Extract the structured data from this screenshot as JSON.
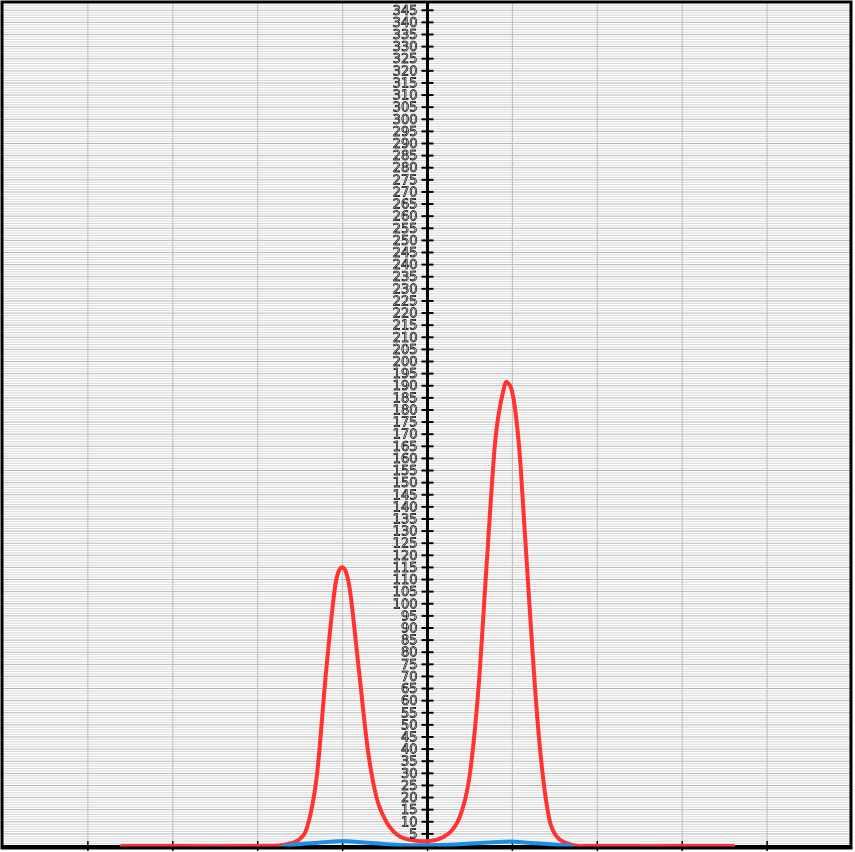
{
  "chart_data": {
    "type": "line",
    "title": "",
    "xlabel": "",
    "ylabel": "",
    "xlim": [
      -5,
      5
    ],
    "ylim": [
      0,
      348
    ],
    "x_ticks": [
      -4,
      -3,
      -2,
      -1,
      0,
      1,
      2,
      3,
      4
    ],
    "y_tick_step": 5,
    "y_labels": [
      "5",
      "10",
      "15",
      "20",
      "25",
      "30",
      "35",
      "40",
      "45",
      "50",
      "55",
      "60",
      "65",
      "70",
      "75",
      "80",
      "85",
      "90",
      "95",
      "100",
      "105",
      "110",
      "115",
      "120",
      "125",
      "130",
      "135",
      "140",
      "145",
      "150",
      "155",
      "160",
      "165",
      "170",
      "175",
      "180",
      "185",
      "190",
      "195",
      "200",
      "205",
      "210",
      "215",
      "220",
      "225",
      "230",
      "235",
      "240",
      "245",
      "250",
      "255",
      "260",
      "265",
      "270",
      "275",
      "280",
      "285",
      "290",
      "295",
      "300",
      "305",
      "310",
      "315",
      "320",
      "325",
      "330",
      "335",
      "340",
      "345"
    ],
    "grid": true,
    "legend": "none",
    "series": [
      {
        "color": "#ff3333",
        "x": [
          -3.6,
          -3.0,
          -2.0,
          -1.7,
          -1.5,
          -1.4,
          -1.3,
          -1.2,
          -1.1,
          -1.05,
          -1.0,
          -0.95,
          -0.9,
          -0.8,
          -0.7,
          -0.6,
          -0.5,
          -0.4,
          -0.3,
          -0.2,
          -0.1,
          0.0,
          0.1,
          0.2,
          0.3,
          0.4,
          0.5,
          0.6,
          0.7,
          0.8,
          0.9,
          0.95,
          1.0,
          1.05,
          1.1,
          1.2,
          1.3,
          1.4,
          1.5,
          1.7,
          2.0,
          3.0,
          3.6
        ],
        "y": [
          0,
          0,
          0,
          0.5,
          3,
          10,
          30,
          70,
          104,
          113,
          115,
          112,
          102,
          70,
          39,
          20,
          11,
          6,
          3.5,
          2.5,
          2,
          2,
          2.5,
          4,
          7,
          14,
          30,
          65,
          118,
          168,
          189,
          191,
          187,
          175,
          155,
          100,
          50,
          18,
          5,
          0.5,
          0,
          0,
          0
        ]
      },
      {
        "color": "#1a8fe3",
        "x": [
          -1.7,
          -1.5,
          -1.2,
          -1.0,
          -0.8,
          -0.5,
          -0.2,
          0.0,
          0.3,
          0.6,
          0.8,
          1.0,
          1.2,
          1.5,
          1.7
        ],
        "y": [
          0,
          0.8,
          1.6,
          2,
          1.6,
          0.8,
          0.3,
          0.3,
          0.6,
          1.2,
          1.6,
          1.8,
          1.3,
          0.6,
          0
        ]
      }
    ]
  }
}
